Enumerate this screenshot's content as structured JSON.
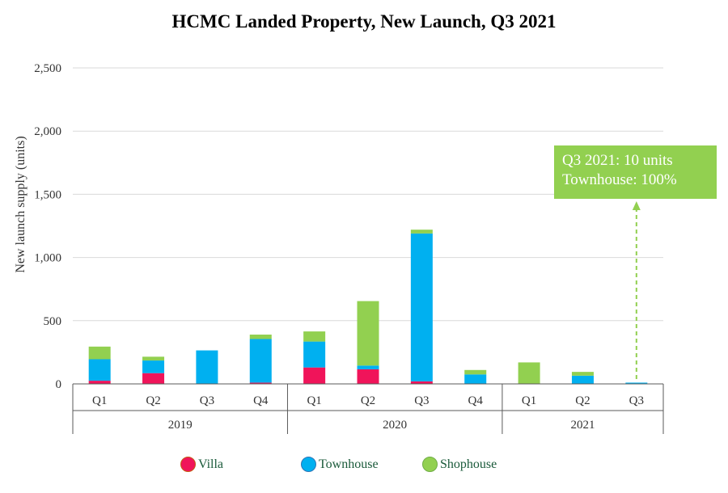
{
  "chart_data": {
    "type": "bar",
    "stacked": true,
    "title": "HCMC Landed Property, New Launch, Q3 2021",
    "ylabel": "New launch supply (units)",
    "xlabel": "",
    "ylim": [
      0,
      2500
    ],
    "yticks": [
      0,
      500,
      1000,
      1500,
      2000,
      2500
    ],
    "ytick_labels": [
      "0",
      "500",
      "1,000",
      "1,500",
      "2,000",
      "2,500"
    ],
    "grid": true,
    "categories": [
      "Q1",
      "Q2",
      "Q3",
      "Q4",
      "Q1",
      "Q2",
      "Q3",
      "Q4",
      "Q1",
      "Q2",
      "Q3"
    ],
    "groups": [
      {
        "label": "2019",
        "count": 4
      },
      {
        "label": "2020",
        "count": 4
      },
      {
        "label": "2021",
        "count": 3
      }
    ],
    "series": [
      {
        "name": "Villa",
        "color": "#f0145a",
        "values": [
          25,
          85,
          0,
          10,
          130,
          115,
          20,
          0,
          0,
          0,
          0
        ]
      },
      {
        "name": "Townhouse",
        "color": "#00b0f0",
        "values": [
          170,
          100,
          265,
          345,
          205,
          30,
          1170,
          75,
          0,
          65,
          10
        ]
      },
      {
        "name": "Shophouse",
        "color": "#92d050",
        "values": [
          100,
          30,
          0,
          35,
          80,
          510,
          30,
          35,
          170,
          30,
          0
        ]
      }
    ],
    "annotation": {
      "line1": "Q3 2021: 10 units",
      "line2": "Townhouse: 100%"
    },
    "legend_position": "bottom"
  }
}
